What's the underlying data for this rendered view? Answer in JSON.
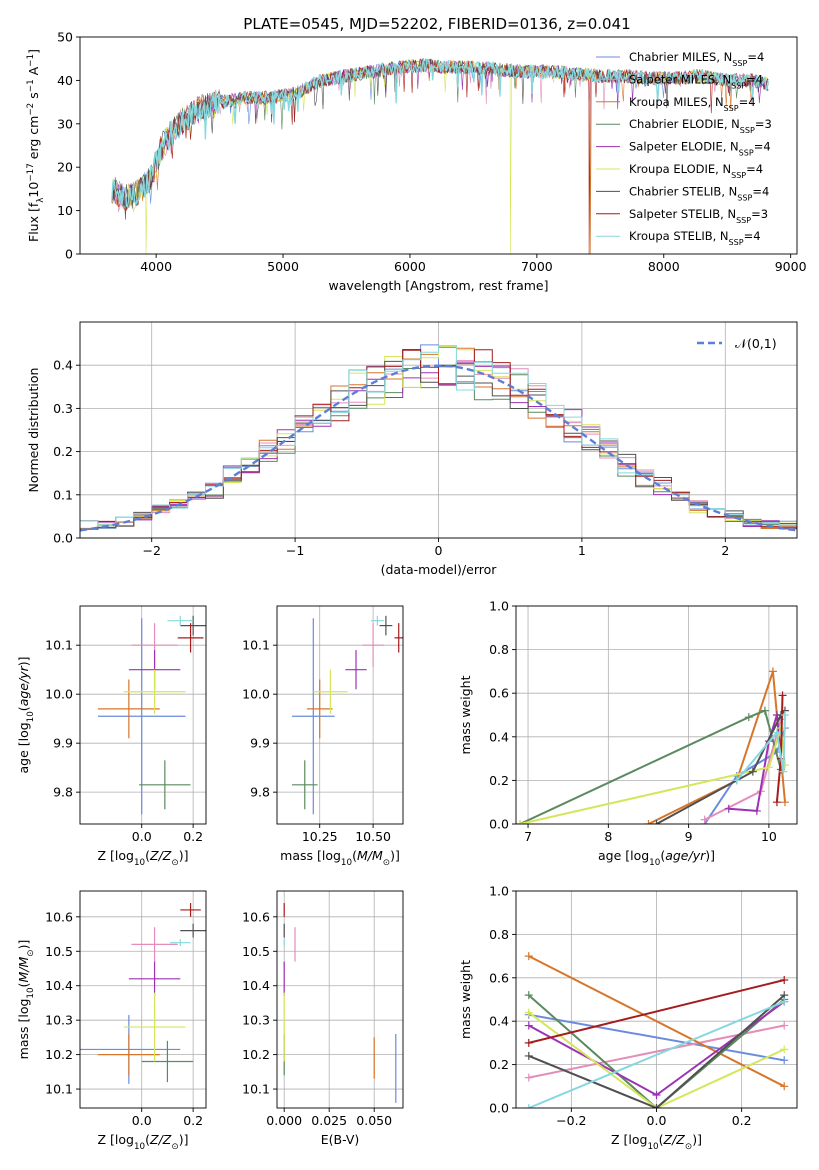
{
  "title": "PLATE=0545, MJD=52202, FIBERID=0136, z=0.041",
  "colors": {
    "Chabrier MILES": "#6a8be0",
    "Salpeter MILES": "#e48dba",
    "Kroupa MILES": "#d7752a",
    "Chabrier ELODIE": "#5a8a5e",
    "Salpeter ELODIE": "#9b33b3",
    "Kroupa ELODIE": "#d6e65a",
    "Chabrier STELIB": "#505050",
    "Salpeter STELIB": "#a51c1c",
    "Kroupa STELIB": "#86d8de"
  },
  "chart_data": [
    {
      "id": "spectrum",
      "type": "line",
      "title": "PLATE=0545, MJD=52202, FIBERID=0136, z=0.041",
      "xlabel": "wavelength [Angstrom, rest frame]",
      "ylabel": "Flux [f_λ 10^-17 erg cm^-2 s^-1 A^-1]",
      "xlim": [
        3400,
        9050
      ],
      "ylim": [
        0,
        50
      ],
      "xticks": [
        4000,
        5000,
        6000,
        7000,
        8000,
        9000
      ],
      "yticks": [
        0,
        10,
        20,
        30,
        40,
        50
      ],
      "grid": false,
      "legend_position": "top-right",
      "legend": [
        {
          "name": "Chabrier MILES",
          "nssp": "4"
        },
        {
          "name": "Salpeter MILES",
          "nssp": "4"
        },
        {
          "name": "Kroupa MILES",
          "nssp": "4"
        },
        {
          "name": "Chabrier ELODIE",
          "nssp": "3"
        },
        {
          "name": "Salpeter ELODIE",
          "nssp": "4"
        },
        {
          "name": "Kroupa ELODIE",
          "nssp": "4"
        },
        {
          "name": "Chabrier STELIB",
          "nssp": "4"
        },
        {
          "name": "Salpeter STELIB",
          "nssp": "3"
        },
        {
          "name": "Kroupa STELIB",
          "nssp": "4"
        }
      ],
      "continuum_x": [
        3650,
        3750,
        3850,
        3950,
        4050,
        4150,
        4300,
        4500,
        4700,
        4900,
        5100,
        5300,
        5500,
        5700,
        5900,
        6100,
        6300,
        6500,
        6700,
        6900,
        7100,
        7300,
        7500,
        7700,
        7900,
        8100,
        8300,
        8500,
        8700,
        8830
      ],
      "continuum_y": [
        15,
        13,
        14,
        17,
        25,
        29,
        33,
        35,
        36,
        36,
        37,
        40,
        41,
        42,
        43,
        43.5,
        43,
        43,
        42.5,
        42,
        42,
        41.5,
        41,
        41,
        40.5,
        40.5,
        41,
        40,
        40,
        39
      ],
      "drops": [
        {
          "model": "Kroupa ELODIE",
          "x": 3920,
          "to": 0
        },
        {
          "model": "Kroupa ELODIE",
          "x": 6790,
          "to": 0
        },
        {
          "model": "Kroupa MILES",
          "x": 7420,
          "to": 0
        },
        {
          "model": "Salpeter STELIB",
          "x": 7415,
          "to": 0
        }
      ]
    },
    {
      "id": "residual-histogram",
      "type": "bar",
      "xlabel": "(data-model)/error",
      "ylabel": "Normed distribution",
      "xlim": [
        -2.5,
        2.5
      ],
      "ylim": [
        0,
        0.5
      ],
      "xticks": [
        -2,
        -1,
        0,
        1,
        2
      ],
      "yticks": [
        0.0,
        0.1,
        0.2,
        0.3,
        0.4
      ],
      "grid": true,
      "legend_position": "top-right",
      "bin_width": 0.125,
      "reference_curve": {
        "name": "𝒩(0,1)",
        "mean": 0,
        "sigma": 1
      }
    },
    {
      "id": "age-vs-Z",
      "type": "scatter",
      "xlabel": "Z [log10(Z/Z⊙)]",
      "ylabel": "age  [log10(age/yr)]",
      "xlim": [
        -0.24,
        0.25
      ],
      "ylim": [
        9.735,
        10.18
      ],
      "xticks": [
        0.0,
        0.2
      ],
      "yticks": [
        9.8,
        9.9,
        10.0,
        10.1
      ],
      "grid": true,
      "points": [
        {
          "model": "Chabrier MILES",
          "x": 0.0,
          "xerr": 0.17,
          "y": 9.955,
          "yerr": 0.2
        },
        {
          "model": "Salpeter MILES",
          "x": 0.05,
          "xerr": 0.09,
          "y": 10.1,
          "yerr": 0.045
        },
        {
          "model": "Kroupa MILES",
          "x": -0.05,
          "xerr": 0.12,
          "y": 9.97,
          "yerr": 0.06
        },
        {
          "model": "Chabrier ELODIE",
          "x": 0.09,
          "xerr": 0.1,
          "y": 9.815,
          "yerr": 0.05
        },
        {
          "model": "Salpeter ELODIE",
          "x": 0.05,
          "xerr": 0.1,
          "y": 10.05,
          "yerr": 0.04
        },
        {
          "model": "Kroupa ELODIE",
          "x": 0.05,
          "xerr": 0.12,
          "y": 10.005,
          "yerr": 0.045
        },
        {
          "model": "Chabrier STELIB",
          "x": 0.2,
          "xerr": 0.05,
          "y": 10.14,
          "yerr": 0.02
        },
        {
          "model": "Salpeter STELIB",
          "x": 0.19,
          "xerr": 0.05,
          "y": 10.115,
          "yerr": 0.03
        },
        {
          "model": "Kroupa STELIB",
          "x": 0.15,
          "xerr": 0.05,
          "y": 10.15,
          "yerr": 0.01
        }
      ]
    },
    {
      "id": "age-vs-mass",
      "type": "scatter",
      "xlabel": "mass [log10(M/M⊙)]",
      "ylabel": "",
      "xlim": [
        10.05,
        10.64
      ],
      "ylim": [
        9.735,
        10.18
      ],
      "xticks": [
        10.25,
        10.5
      ],
      "yticks": [
        9.8,
        9.9,
        10.0,
        10.1
      ],
      "grid": true,
      "points": [
        {
          "model": "Chabrier MILES",
          "x": 10.22,
          "xerr": 0.1,
          "y": 9.955,
          "yerr": 0.2
        },
        {
          "model": "Salpeter MILES",
          "x": 10.5,
          "xerr": 0.05,
          "y": 10.1,
          "yerr": 0.045
        },
        {
          "model": "Kroupa MILES",
          "x": 10.25,
          "xerr": 0.06,
          "y": 9.97,
          "yerr": 0.06
        },
        {
          "model": "Chabrier ELODIE",
          "x": 10.18,
          "xerr": 0.06,
          "y": 9.815,
          "yerr": 0.05
        },
        {
          "model": "Salpeter ELODIE",
          "x": 10.42,
          "xerr": 0.05,
          "y": 10.05,
          "yerr": 0.04
        },
        {
          "model": "Kroupa ELODIE",
          "x": 10.3,
          "xerr": 0.08,
          "y": 10.005,
          "yerr": 0.045
        },
        {
          "model": "Chabrier STELIB",
          "x": 10.56,
          "xerr": 0.03,
          "y": 10.14,
          "yerr": 0.02
        },
        {
          "model": "Salpeter STELIB",
          "x": 10.62,
          "xerr": 0.02,
          "y": 10.115,
          "yerr": 0.03
        },
        {
          "model": "Kroupa STELIB",
          "x": 10.52,
          "xerr": 0.03,
          "y": 10.15,
          "yerr": 0.01
        }
      ]
    },
    {
      "id": "mass-weight-vs-age",
      "type": "line",
      "xlabel": "age  [log10(age/yr)]",
      "ylabel": "mass weight",
      "xlim": [
        6.85,
        10.35
      ],
      "ylim": [
        0,
        1
      ],
      "xticks": [
        7,
        8,
        9,
        10
      ],
      "yticks": [
        0.0,
        0.2,
        0.4,
        0.6,
        0.8,
        1.0
      ],
      "grid": true,
      "series": [
        {
          "model": "Chabrier MILES",
          "x": [
            9.2,
            9.6,
            10.1,
            10.2
          ],
          "y": [
            0.0,
            0.22,
            0.33,
            0.44
          ]
        },
        {
          "model": "Salpeter MILES",
          "x": [
            9.2,
            9.9,
            10.15
          ],
          "y": [
            0.02,
            0.15,
            0.48
          ]
        },
        {
          "model": "Kroupa MILES",
          "x": [
            8.5,
            9.6,
            10.05,
            10.2
          ],
          "y": [
            0.0,
            0.2,
            0.7,
            0.1
          ]
        },
        {
          "model": "Chabrier ELODIE",
          "x": [
            6.9,
            9.75,
            9.95,
            10.15
          ],
          "y": [
            0.0,
            0.49,
            0.52,
            0.25
          ]
        },
        {
          "model": "Salpeter ELODIE",
          "x": [
            9.5,
            9.85,
            10.0,
            10.1,
            10.15
          ],
          "y": [
            0.07,
            0.06,
            0.38,
            0.5,
            0.3
          ]
        },
        {
          "model": "Kroupa ELODIE",
          "x": [
            6.9,
            10.0,
            10.15,
            10.2
          ],
          "y": [
            0.0,
            0.26,
            0.44,
            0.27
          ]
        },
        {
          "model": "Chabrier STELIB",
          "x": [
            8.6,
            9.8,
            10.15,
            10.2
          ],
          "y": [
            0.0,
            0.24,
            0.5,
            0.52
          ]
        },
        {
          "model": "Salpeter STELIB",
          "x": [
            10.1,
            10.15,
            10.17
          ],
          "y": [
            0.1,
            0.3,
            0.59
          ]
        },
        {
          "model": "Kroupa STELIB",
          "x": [
            9.6,
            10.1,
            10.18,
            10.2
          ],
          "y": [
            0.2,
            0.42,
            0.24,
            0.5
          ]
        }
      ]
    },
    {
      "id": "mass-vs-Z",
      "type": "scatter",
      "xlabel": "Z [log10(Z/Z⊙)]",
      "ylabel": "mass [log10(M/M⊙)]",
      "xlim": [
        -0.24,
        0.25
      ],
      "ylim": [
        10.045,
        10.675
      ],
      "xticks": [
        0.0,
        0.2
      ],
      "yticks": [
        10.1,
        10.2,
        10.3,
        10.4,
        10.5,
        10.6
      ],
      "grid": true,
      "points": [
        {
          "model": "Chabrier MILES",
          "x": -0.05,
          "xerr": 0.2,
          "y": 10.215,
          "yerr": 0.1
        },
        {
          "model": "Salpeter MILES",
          "x": 0.05,
          "xerr": 0.09,
          "y": 10.52,
          "yerr": 0.05
        },
        {
          "model": "Kroupa MILES",
          "x": -0.05,
          "xerr": 0.12,
          "y": 10.2,
          "yerr": 0.06
        },
        {
          "model": "Chabrier ELODIE",
          "x": 0.1,
          "xerr": 0.1,
          "y": 10.18,
          "yerr": 0.06
        },
        {
          "model": "Salpeter ELODIE",
          "x": 0.05,
          "xerr": 0.1,
          "y": 10.42,
          "yerr": 0.05
        },
        {
          "model": "Kroupa ELODIE",
          "x": 0.05,
          "xerr": 0.12,
          "y": 10.28,
          "yerr": 0.1
        },
        {
          "model": "Chabrier STELIB",
          "x": 0.2,
          "xerr": 0.05,
          "y": 10.56,
          "yerr": 0.02
        },
        {
          "model": "Salpeter STELIB",
          "x": 0.19,
          "xerr": 0.04,
          "y": 10.62,
          "yerr": 0.02
        },
        {
          "model": "Kroupa STELIB",
          "x": 0.15,
          "xerr": 0.04,
          "y": 10.525,
          "yerr": 0.01
        }
      ]
    },
    {
      "id": "mass-vs-EBV",
      "type": "scatter",
      "xlabel": "E(B-V)",
      "ylabel": "",
      "xlim": [
        -0.004,
        0.066
      ],
      "ylim": [
        10.045,
        10.675
      ],
      "xticks": [
        0.0,
        0.025,
        0.05
      ],
      "yticks": [
        10.1,
        10.2,
        10.3,
        10.4,
        10.5,
        10.6
      ],
      "grid": true,
      "points": [
        {
          "model": "Chabrier MILES",
          "x": 0.062,
          "xerr": 0,
          "y": 10.16,
          "yerr": 0.1
        },
        {
          "model": "Salpeter MILES",
          "x": 0.006,
          "xerr": 0,
          "y": 10.52,
          "yerr": 0.05
        },
        {
          "model": "Kroupa MILES",
          "x": 0.05,
          "xerr": 0,
          "y": 10.19,
          "yerr": 0.06
        },
        {
          "model": "Chabrier ELODIE",
          "x": 0.0,
          "xerr": 0,
          "y": 10.2,
          "yerr": 0.06
        },
        {
          "model": "Salpeter ELODIE",
          "x": 0.0,
          "xerr": 0,
          "y": 10.42,
          "yerr": 0.05
        },
        {
          "model": "Kroupa ELODIE",
          "x": 0.0,
          "xerr": 0,
          "y": 10.28,
          "yerr": 0.1
        },
        {
          "model": "Chabrier STELIB",
          "x": 0.0,
          "xerr": 0,
          "y": 10.56,
          "yerr": 0.02
        },
        {
          "model": "Salpeter STELIB",
          "x": 0.0,
          "xerr": 0,
          "y": 10.62,
          "yerr": 0.02
        },
        {
          "model": "Kroupa STELIB",
          "x": 0.0,
          "xerr": 0,
          "y": 10.525,
          "yerr": 0.01
        }
      ]
    },
    {
      "id": "mass-weight-vs-Z",
      "type": "line",
      "xlabel": "Z [log10(Z/Z⊙)]",
      "ylabel": "mass weight",
      "xlim": [
        -0.33,
        0.33
      ],
      "ylim": [
        0,
        1
      ],
      "xticks": [
        -0.2,
        0.0,
        0.2
      ],
      "yticks": [
        0.0,
        0.2,
        0.4,
        0.6,
        0.8,
        1.0
      ],
      "grid": true,
      "series": [
        {
          "model": "Chabrier MILES",
          "x": [
            -0.3,
            0.3
          ],
          "y": [
            0.43,
            0.22
          ]
        },
        {
          "model": "Salpeter MILES",
          "x": [
            -0.3,
            0.3
          ],
          "y": [
            0.14,
            0.38
          ]
        },
        {
          "model": "Kroupa MILES",
          "x": [
            -0.3,
            0.3
          ],
          "y": [
            0.7,
            0.1
          ]
        },
        {
          "model": "Chabrier ELODIE",
          "x": [
            -0.3,
            0.0,
            0.3
          ],
          "y": [
            0.52,
            0.0,
            0.5
          ]
        },
        {
          "model": "Salpeter ELODIE",
          "x": [
            -0.3,
            0.0,
            0.3
          ],
          "y": [
            0.38,
            0.06,
            0.49
          ]
        },
        {
          "model": "Kroupa ELODIE",
          "x": [
            -0.3,
            0.0,
            0.3
          ],
          "y": [
            0.44,
            0.0,
            0.27
          ]
        },
        {
          "model": "Chabrier STELIB",
          "x": [
            -0.3,
            0.0,
            0.3
          ],
          "y": [
            0.24,
            0.0,
            0.52
          ]
        },
        {
          "model": "Salpeter STELIB",
          "x": [
            -0.3,
            0.3
          ],
          "y": [
            0.3,
            0.59
          ]
        },
        {
          "model": "Kroupa STELIB",
          "x": [
            -0.3,
            0.3
          ],
          "y": [
            0.0,
            0.49
          ]
        }
      ]
    }
  ]
}
